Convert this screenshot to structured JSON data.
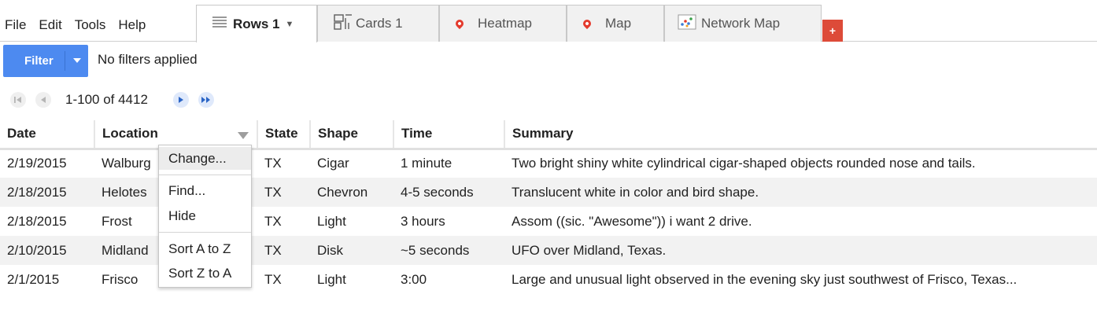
{
  "menu": [
    "File",
    "Edit",
    "Tools",
    "Help"
  ],
  "tabs": [
    {
      "label": "Rows 1",
      "icon": "rows-icon",
      "active": true
    },
    {
      "label": "Cards 1",
      "icon": "cards-icon",
      "active": false
    },
    {
      "label": "Heatmap",
      "icon": "map-pin-icon",
      "active": false
    },
    {
      "label": "Map",
      "icon": "map-pin-icon",
      "active": false
    },
    {
      "label": "Network Map",
      "icon": "network-icon",
      "active": false
    }
  ],
  "add_tab_label": "+",
  "filter": {
    "button_label": "Filter",
    "status": "No filters applied"
  },
  "pager": {
    "range": "1-100 of 4412"
  },
  "table": {
    "headers": [
      "Date",
      "Location",
      "State",
      "Shape",
      "Time",
      "Summary"
    ],
    "rows": [
      [
        "2/19/2015",
        "Walburg",
        "TX",
        "Cigar",
        "1 minute",
        "Two bright shiny white cylindrical cigar-shaped objects rounded nose and tails."
      ],
      [
        "2/18/2015",
        "Helotes",
        "TX",
        "Chevron",
        "4-5 seconds",
        "Translucent white in color and bird shape."
      ],
      [
        "2/18/2015",
        "Frost",
        "TX",
        "Light",
        "3 hours",
        "Assom ((sic. \"Awesome\")) i want 2 drive."
      ],
      [
        "2/10/2015",
        "Midland",
        "TX",
        "Disk",
        "~5 seconds",
        "UFO over Midland, Texas."
      ],
      [
        "2/1/2015",
        "Frisco",
        "TX",
        "Light",
        "3:00",
        "Large and unusual light observed in the evening sky just southwest of Frisco, Texas..."
      ]
    ]
  },
  "context_menu": {
    "items": [
      "Change...",
      "Find...",
      "Hide",
      "Sort A to Z",
      "Sort Z to A"
    ]
  },
  "colors": {
    "accent": "#4d8af0",
    "add_tab": "#dd4b39",
    "pin": "#e43a2d"
  }
}
